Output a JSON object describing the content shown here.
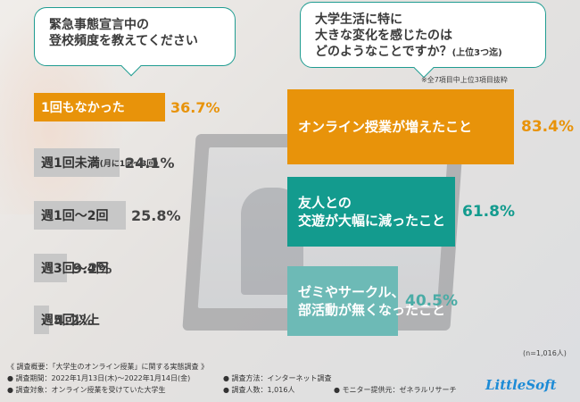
{
  "questions": {
    "left_line1": "緊急事態宣言中の",
    "left_line2": "登校頻度を教えてください",
    "right_line1": "大学生活に特に",
    "right_line2": "大きな変化を感じたのは",
    "right_line3": "どのようなことですか？",
    "right_line3_sub": "(上位3つ迄)"
  },
  "note_top": "※全7項目中上位3項目抜粋",
  "colors": {
    "highlight": "#e8930a",
    "teal": "#139b8e",
    "teal_light": "#4aaca6",
    "teal_pale": "#6dbab6",
    "gray": "#c7c7c7",
    "border_teal": "#1f9c91"
  },
  "chart_data": [
    {
      "type": "bar",
      "title": "緊急事態宣言中の登校頻度を教えてください",
      "categories": [
        "1回もなかった",
        "週1回未満(月に1回〜3回)",
        "週1回〜2回",
        "週3回〜4回",
        "週5回以上"
      ],
      "category_labels": [
        {
          "main": "1回もなかった",
          "sub": ""
        },
        {
          "main": "週1回未満",
          "sub": "(月に1回〜3回)"
        },
        {
          "main": "週1回〜2回",
          "sub": ""
        },
        {
          "main": "週3回〜4回",
          "sub": ""
        },
        {
          "main": "週5回以上",
          "sub": ""
        }
      ],
      "values": [
        36.7,
        24.1,
        25.8,
        9.2,
        4.2
      ],
      "value_labels": [
        "36.7%",
        "24.1%",
        "25.8%",
        "9.2%",
        "4.2%"
      ],
      "unit": "%"
    },
    {
      "type": "bar",
      "title": "大学生活に特に大きな変化を感じたのはどのようなことですか？(上位3つ迄)",
      "categories": [
        "オンライン授業が増えたこと",
        "友人との交遊が大幅に減ったこと",
        "ゼミやサークル、部活動が無くなったこと"
      ],
      "category_labels": [
        [
          "オンライン授業が増えたこと"
        ],
        [
          "友人との",
          "交遊が大幅に減ったこと"
        ],
        [
          "ゼミやサークル、",
          "部活動が無くなったこと"
        ]
      ],
      "values": [
        83.4,
        61.8,
        40.5
      ],
      "value_labels": [
        "83.4%",
        "61.8%",
        "40.5%"
      ],
      "unit": "%"
    }
  ],
  "sample_count": "(n=1,016人)",
  "footer": {
    "title": "《 調査概要：「大学生のオンライン授業」に関する実態調査 》",
    "period": "● 調査期間：2022年1月13日(木)〜2022年1月14日(金)",
    "method": "● 調査方法：インターネット調査",
    "target": "● 調査対象：オンライン授業を受けていた大学生",
    "people": "● 調査人数：1,016人",
    "provider": "● モニター提供元：ゼネラルリサーチ"
  },
  "logo": "LittleSoft"
}
